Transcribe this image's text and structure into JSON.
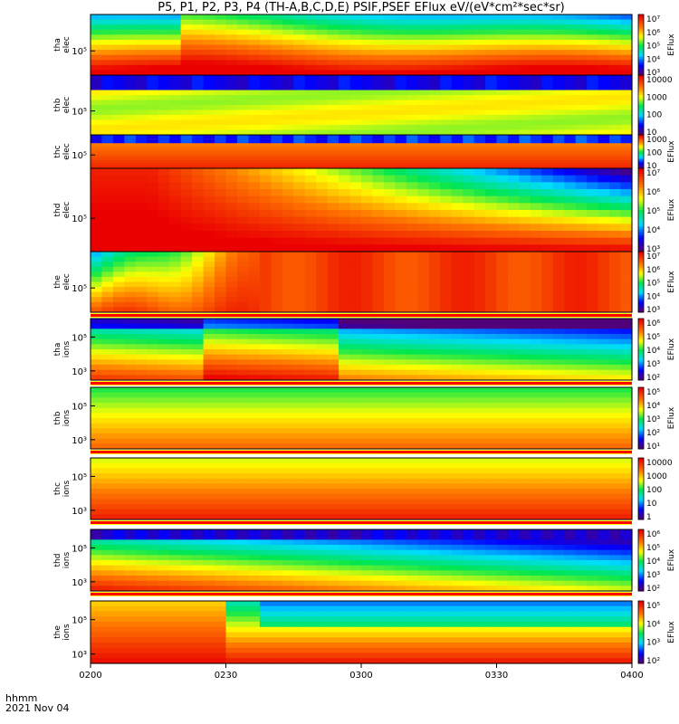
{
  "title": "P5, P1, P2, P3, P4 (TH-A,B,C,D,E) PSIF,PSEF EFlux eV/(eV*cm²*sec*sr)",
  "time_axis": {
    "unit_label": "hhmm",
    "date_label": "2021 Nov 04",
    "ticks": [
      "0200",
      "0230",
      "0300",
      "0330",
      "0400"
    ]
  },
  "chart_data": [
    {
      "type": "heatmap",
      "panel": "tha elec",
      "ylabel": [
        "tha",
        "elec"
      ],
      "y_tick": "10⁵",
      "colorbar_ticks": [
        "10⁷",
        "10⁶",
        "10⁵",
        "10⁴",
        "10³"
      ],
      "colorbar_label": "EFlux"
    },
    {
      "type": "heatmap",
      "panel": "thb elec",
      "ylabel": [
        "thb",
        "elec"
      ],
      "y_tick": "10⁵",
      "colorbar_ticks": [
        "10000",
        "1000",
        "100",
        "10"
      ],
      "colorbar_label": ""
    },
    {
      "type": "heatmap",
      "panel": "thc elec",
      "ylabel": [
        "thc",
        "elec"
      ],
      "y_tick": "10⁵",
      "colorbar_ticks": [
        "1000",
        "100",
        "10"
      ],
      "colorbar_label": "EFlux"
    },
    {
      "type": "heatmap",
      "panel": "thd elec",
      "ylabel": [
        "thd",
        "elec"
      ],
      "y_tick": "10⁵",
      "colorbar_ticks": [
        "10⁷",
        "10⁶",
        "10⁵",
        "10⁴",
        "10³"
      ],
      "colorbar_label": "EFlux"
    },
    {
      "type": "heatmap",
      "panel": "the elec",
      "ylabel": [
        "the",
        "elec"
      ],
      "y_tick": "10⁵",
      "colorbar_ticks": [
        "10⁷",
        "10⁶",
        "10⁵",
        "10⁴",
        "10³"
      ],
      "colorbar_label": "EFlux"
    },
    {
      "type": "heatmap",
      "panel": "tha ions",
      "ylabel": [
        "tha",
        "ions"
      ],
      "y_ticks": [
        "10⁵",
        "10³"
      ],
      "colorbar_ticks": [
        "10⁶",
        "10⁵",
        "10⁴",
        "10³",
        "10²"
      ],
      "colorbar_label": "EFlux"
    },
    {
      "type": "heatmap",
      "panel": "thb ions",
      "ylabel": [
        "thb",
        "ions"
      ],
      "y_ticks": [
        "10⁵",
        "10³"
      ],
      "colorbar_ticks": [
        "10⁵",
        "10⁴",
        "10³",
        "10²",
        "10¹"
      ],
      "colorbar_label": "EFlux"
    },
    {
      "type": "heatmap",
      "panel": "thc ions",
      "ylabel": [
        "thc",
        "ions"
      ],
      "y_ticks": [
        "10⁵",
        "10³"
      ],
      "colorbar_ticks": [
        "10000",
        "1000",
        "100",
        "10",
        "1"
      ],
      "colorbar_label": ""
    },
    {
      "type": "heatmap",
      "panel": "thd ions",
      "ylabel": [
        "thd",
        "ions"
      ],
      "y_ticks": [
        "10⁵",
        "10³"
      ],
      "colorbar_ticks": [
        "10⁶",
        "10⁵",
        "10⁴",
        "10³",
        "10²"
      ],
      "colorbar_label": "EFlux"
    },
    {
      "type": "heatmap",
      "panel": "the ions",
      "ylabel": [
        "the",
        "ions"
      ],
      "y_ticks": [
        "10⁵",
        "10³"
      ],
      "colorbar_ticks": [
        "10⁵",
        "10⁴",
        "10³",
        "10²"
      ],
      "colorbar_label": "EFlux"
    }
  ]
}
